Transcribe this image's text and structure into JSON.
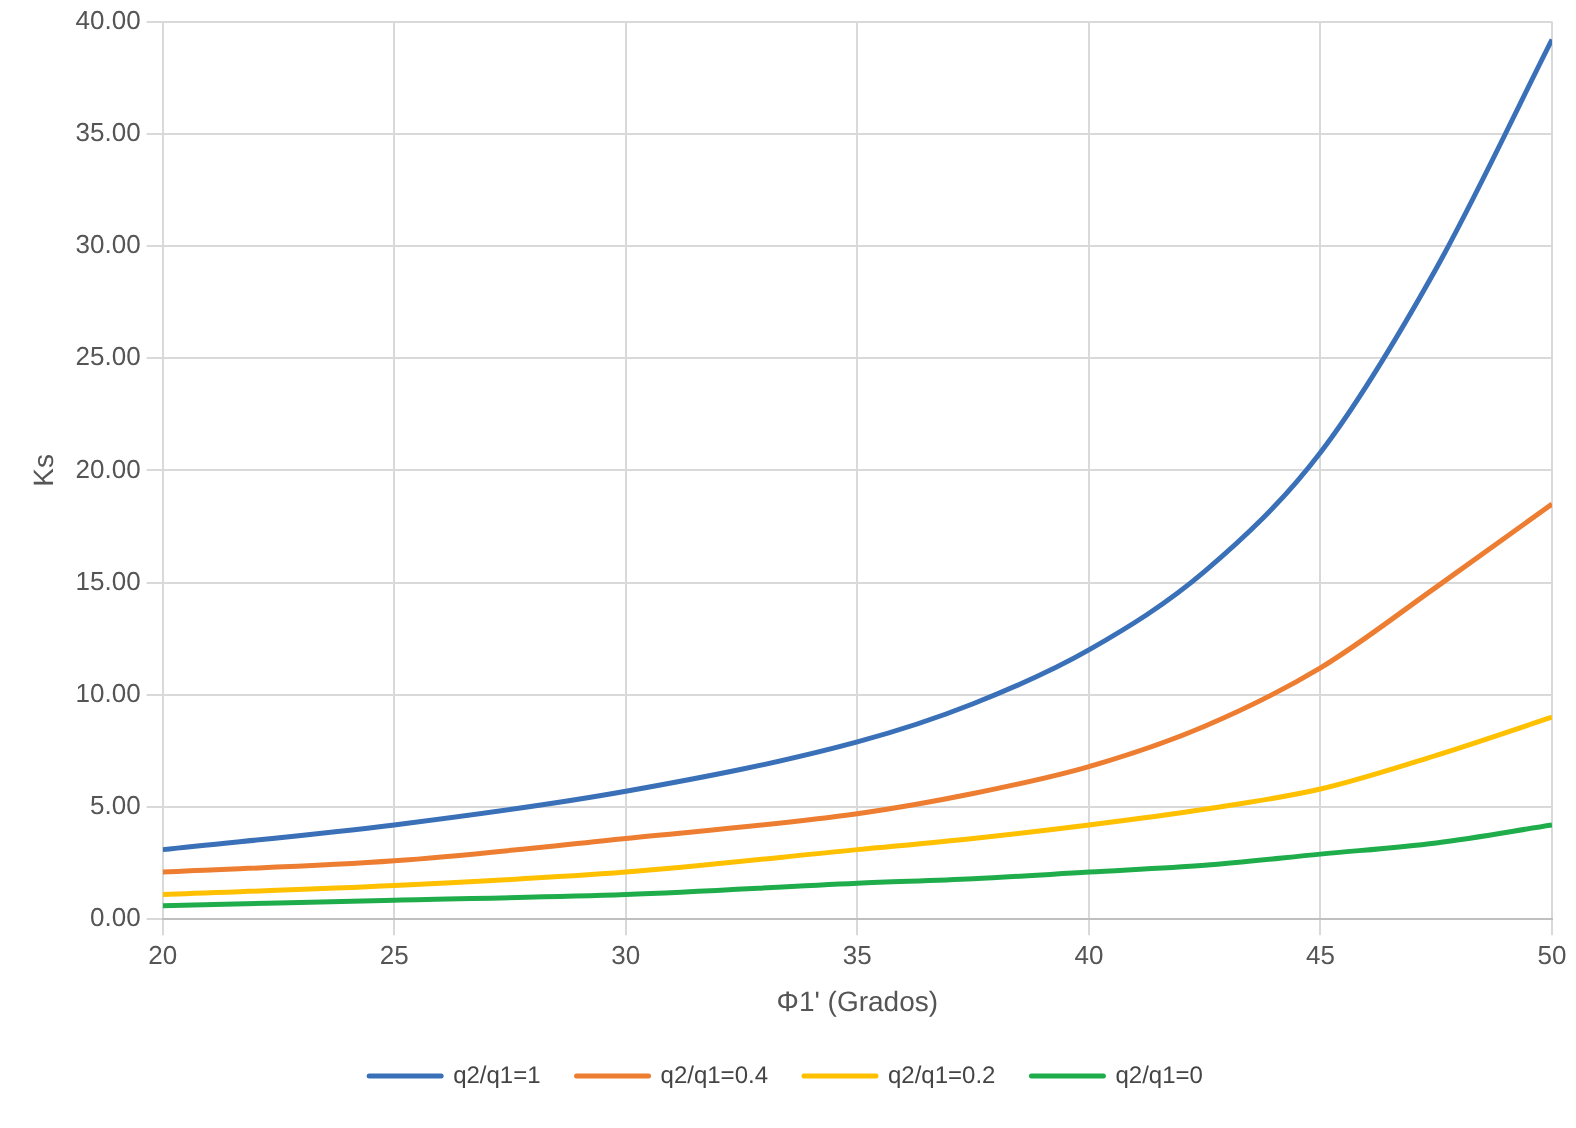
{
  "chart_data": {
    "type": "line",
    "xlabel": "Φ1' (Grados)",
    "ylabel": "Ks",
    "x": [
      20,
      25,
      30,
      35,
      37.5,
      40,
      42.5,
      45,
      47.5,
      50
    ],
    "series": [
      {
        "name": "q2/q1=1",
        "color": "#3a70b8",
        "values": [
          3.1,
          4.2,
          5.7,
          7.9,
          9.6,
          12.0,
          15.5,
          20.8,
          29.0,
          39.2
        ]
      },
      {
        "name": "q2/q1=0.4",
        "color": "#ed7d31",
        "values": [
          2.1,
          2.6,
          3.6,
          4.7,
          5.6,
          6.8,
          8.6,
          11.2,
          14.8,
          18.5
        ]
      },
      {
        "name": "q2/q1=0.2",
        "color": "#ffc000",
        "values": [
          1.1,
          1.5,
          2.1,
          3.1,
          3.6,
          4.2,
          4.9,
          5.8,
          7.3,
          9.0
        ]
      },
      {
        "name": "q2/q1=0",
        "color": "#1fad4c",
        "values": [
          0.6,
          0.85,
          1.1,
          1.6,
          1.8,
          2.1,
          2.4,
          2.9,
          3.4,
          4.2
        ]
      }
    ],
    "xlim": [
      20,
      50
    ],
    "xticks": [
      20,
      25,
      30,
      35,
      40,
      45,
      50
    ],
    "ylim": [
      0,
      40
    ],
    "yticks": [
      {
        "value": 0,
        "label": "0.00"
      },
      {
        "value": 5,
        "label": "5.00"
      },
      {
        "value": 10,
        "label": "10.00"
      },
      {
        "value": 15,
        "label": "15.00"
      },
      {
        "value": 20,
        "label": "20.00"
      },
      {
        "value": 25,
        "label": "25.00"
      },
      {
        "value": 30,
        "label": "30.00"
      },
      {
        "value": 35,
        "label": "35.00"
      },
      {
        "value": 40,
        "label": "40.00"
      }
    ],
    "grid": true,
    "legend": "bottom",
    "marker": "none",
    "line_style": "solid"
  }
}
